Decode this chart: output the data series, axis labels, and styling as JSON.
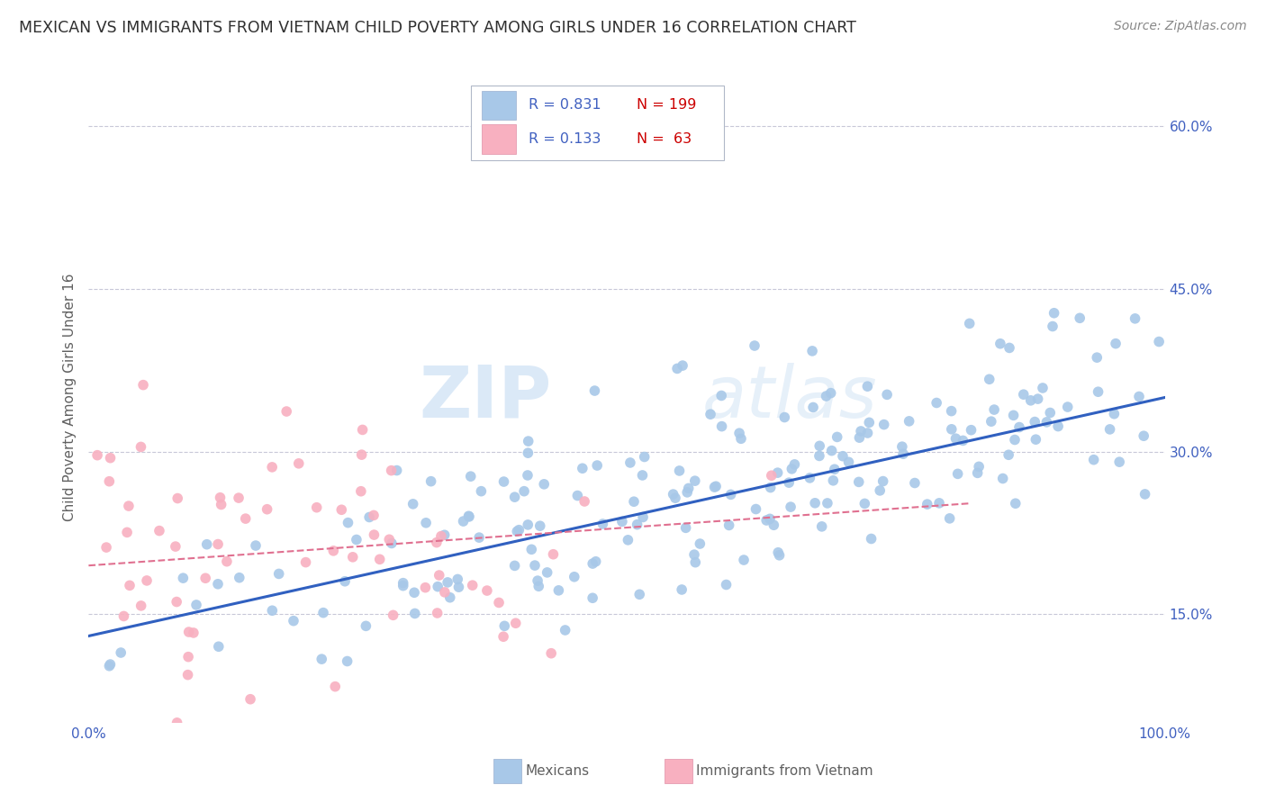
{
  "title": "MEXICAN VS IMMIGRANTS FROM VIETNAM CHILD POVERTY AMONG GIRLS UNDER 16 CORRELATION CHART",
  "source": "Source: ZipAtlas.com",
  "ylabel": "Child Poverty Among Girls Under 16",
  "xlim": [
    0,
    1
  ],
  "ylim": [
    0.05,
    0.65
  ],
  "yticks": [
    0.15,
    0.3,
    0.45,
    0.6
  ],
  "yticklabels": [
    "15.0%",
    "30.0%",
    "45.0%",
    "60.0%"
  ],
  "blue_color": "#a8c8e8",
  "blue_line_color": "#3060c0",
  "pink_color": "#f8b0c0",
  "pink_line_color": "#e07090",
  "legend_R1": "0.831",
  "legend_N1": "199",
  "legend_R2": "0.133",
  "legend_N2": "63",
  "label1": "Mexicans",
  "label2": "Immigrants from Vietnam",
  "watermark_zip": "ZIP",
  "watermark_atlas": "atlas",
  "background_color": "#ffffff",
  "grid_color": "#c8c8d8",
  "title_color": "#303030",
  "axis_label_color": "#606060",
  "tick_label_color": "#4060c0",
  "legend_R_color": "#4060c0",
  "legend_N_color": "#cc0000",
  "seed": 42,
  "n_blue": 199,
  "n_pink": 63,
  "blue_slope": 0.22,
  "blue_intercept": 0.13,
  "pink_slope": 0.07,
  "pink_intercept": 0.195
}
